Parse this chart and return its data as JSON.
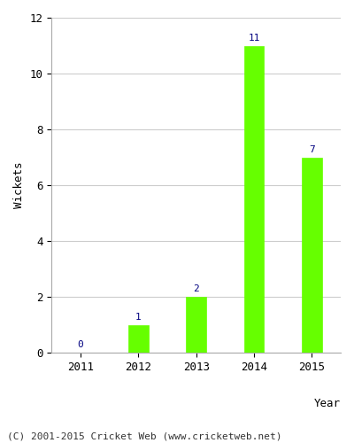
{
  "years": [
    "2011",
    "2012",
    "2013",
    "2014",
    "2015"
  ],
  "values": [
    0,
    1,
    2,
    11,
    7
  ],
  "bar_color": "#66ff00",
  "bar_edgecolor": "#66ff00",
  "xlabel": "Year",
  "ylabel": "Wickets",
  "ylim": [
    0,
    12
  ],
  "yticks": [
    0,
    2,
    4,
    6,
    8,
    10,
    12
  ],
  "annotation_color": "#000080",
  "annotation_fontsize": 8,
  "label_fontsize": 9,
  "tick_fontsize": 9,
  "grid_color": "#cccccc",
  "background_color": "#ffffff",
  "footer_text": "(C) 2001-2015 Cricket Web (www.cricketweb.net)",
  "footer_fontsize": 8,
  "bar_width": 0.35
}
